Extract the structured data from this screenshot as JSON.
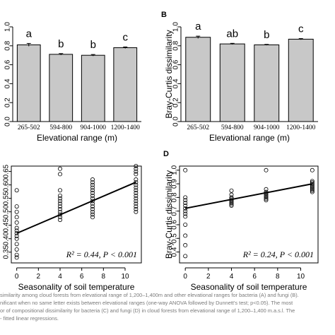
{
  "chart_data": [
    {
      "type": "bar",
      "panel_label": "",
      "categories": [
        "265-502",
        "594-800",
        "904-1000",
        "1200-1400"
      ],
      "values": [
        0.81,
        0.71,
        0.7,
        0.78
      ],
      "errors": [
        0.015,
        0.008,
        0.008,
        0.008
      ],
      "letters": [
        "a",
        "b",
        "b",
        "c"
      ],
      "xlabel": "Elevational range (m)",
      "ylabel": "",
      "ylim": [
        0,
        1.0
      ],
      "yticks": [
        "0.0",
        "0.2",
        "0.4",
        "0.6",
        "0.8",
        "1.0"
      ],
      "bar_color": "#c8c8c8",
      "grid": false
    },
    {
      "type": "bar",
      "panel_label": "B",
      "categories": [
        "265-502",
        "594-800",
        "904-1000",
        "1200-1400"
      ],
      "values": [
        0.89,
        0.82,
        0.81,
        0.87
      ],
      "errors": [
        0.012,
        0.006,
        0.005,
        0.006
      ],
      "letters": [
        "a",
        "ab",
        "b",
        "c"
      ],
      "xlabel": "Elevational range (m)",
      "ylabel": "Bray-Curtis dissimilarity",
      "ylim": [
        0,
        1.0
      ],
      "yticks": [
        "0.0",
        "0.2",
        "0.4",
        "0.6",
        "0.8",
        "1.0"
      ],
      "bar_color": "#c8c8c8",
      "grid": false
    },
    {
      "type": "scatter",
      "panel_label": "",
      "xlabel": "Seasonality of soil temperature",
      "ylabel": "",
      "xlim": [
        -0.5,
        11.5
      ],
      "ylim": [
        0.31,
        0.67
      ],
      "xticks": [
        "0",
        "2",
        "4",
        "6",
        "8",
        "10"
      ],
      "yticks": [
        "0.35",
        "0.40",
        "0.45",
        "0.50",
        "0.55",
        "0.60",
        "0.65"
      ],
      "fit": {
        "x": [
          0,
          11
        ],
        "y": [
          0.42,
          0.61
        ]
      },
      "annotation": "R² = 0.44, P < 0.001",
      "points": {
        "x": [
          0,
          0,
          0,
          0,
          0,
          0,
          0,
          0,
          0,
          0,
          0,
          0,
          0,
          0,
          4,
          4,
          4,
          4,
          4,
          4,
          4,
          4,
          4,
          4,
          4,
          4,
          4,
          7,
          7,
          7,
          7,
          7,
          7,
          7,
          7,
          7,
          7,
          7,
          7,
          7,
          7,
          7,
          11,
          11,
          11,
          11,
          11,
          11,
          11,
          11,
          11,
          11,
          11,
          11,
          11,
          11,
          11,
          11,
          11
        ],
        "y": [
          0.58,
          0.52,
          0.5,
          0.48,
          0.46,
          0.44,
          0.43,
          0.42,
          0.41,
          0.4,
          0.38,
          0.36,
          0.34,
          0.33,
          0.66,
          0.64,
          0.58,
          0.56,
          0.55,
          0.54,
          0.53,
          0.52,
          0.51,
          0.5,
          0.49,
          0.48,
          0.47,
          0.62,
          0.61,
          0.6,
          0.59,
          0.58,
          0.57,
          0.56,
          0.55,
          0.54,
          0.53,
          0.52,
          0.51,
          0.5,
          0.49,
          0.48,
          0.67,
          0.66,
          0.65,
          0.64,
          0.62,
          0.61,
          0.6,
          0.59,
          0.58,
          0.57,
          0.56,
          0.55,
          0.54,
          0.53,
          0.52,
          0.51,
          0.5
        ]
      },
      "grid": false
    },
    {
      "type": "scatter",
      "panel_label": "D",
      "xlabel": "Seasonality of soil temperature",
      "ylabel": "Bray-Curtis dissimilarity",
      "xlim": [
        -0.5,
        11.5
      ],
      "ylim": [
        0.32,
        1.03
      ],
      "xticks": [
        "0",
        "2",
        "4",
        "6",
        "8",
        "10"
      ],
      "yticks": [
        "0.4",
        "0.5",
        "0.6",
        "0.7",
        "0.8",
        "0.9",
        "1.0"
      ],
      "fit": {
        "x": [
          0,
          11
        ],
        "y": [
          0.72,
          0.9
        ]
      },
      "annotation": "R² = 0.24, P < 0.001",
      "points": {
        "x": [
          0,
          0,
          0,
          0,
          0,
          0,
          0,
          0,
          0,
          0,
          0,
          0,
          0,
          4,
          4,
          4,
          4,
          4,
          4,
          4,
          4,
          4,
          7,
          7,
          7,
          7,
          7,
          7,
          7,
          7,
          7,
          11,
          11,
          11,
          11,
          11,
          11,
          11,
          11,
          11,
          11
        ],
        "y": [
          1.0,
          0.8,
          0.78,
          0.76,
          0.74,
          0.72,
          0.7,
          0.68,
          0.66,
          0.6,
          0.52,
          0.45,
          0.37,
          0.85,
          0.82,
          0.8,
          0.79,
          0.78,
          0.77,
          0.76,
          0.75,
          0.74,
          1.0,
          0.86,
          0.84,
          0.83,
          0.82,
          0.81,
          0.8,
          0.79,
          0.78,
          1.0,
          0.92,
          0.91,
          0.9,
          0.89,
          0.88,
          0.87,
          0.86,
          0.85,
          0.84
        ]
      },
      "grid": false
    }
  ],
  "caption_lines": [
    "similarity among cloud forests from elevational range of 1,200–1,400m and other elevational ranges for bacteria (A) and fungi (B).",
    "nificant when no same letter exists between elevational ranges (one-way ANOVA followed by Dunnett's test; p<0.05). The most",
    "or of compositional dissimilarity for bacteria (C) and fungi (D) in cloud forests from elevational range of 1,200–1,400 m.a.s.l. The",
    "- fitted linear regressions."
  ]
}
